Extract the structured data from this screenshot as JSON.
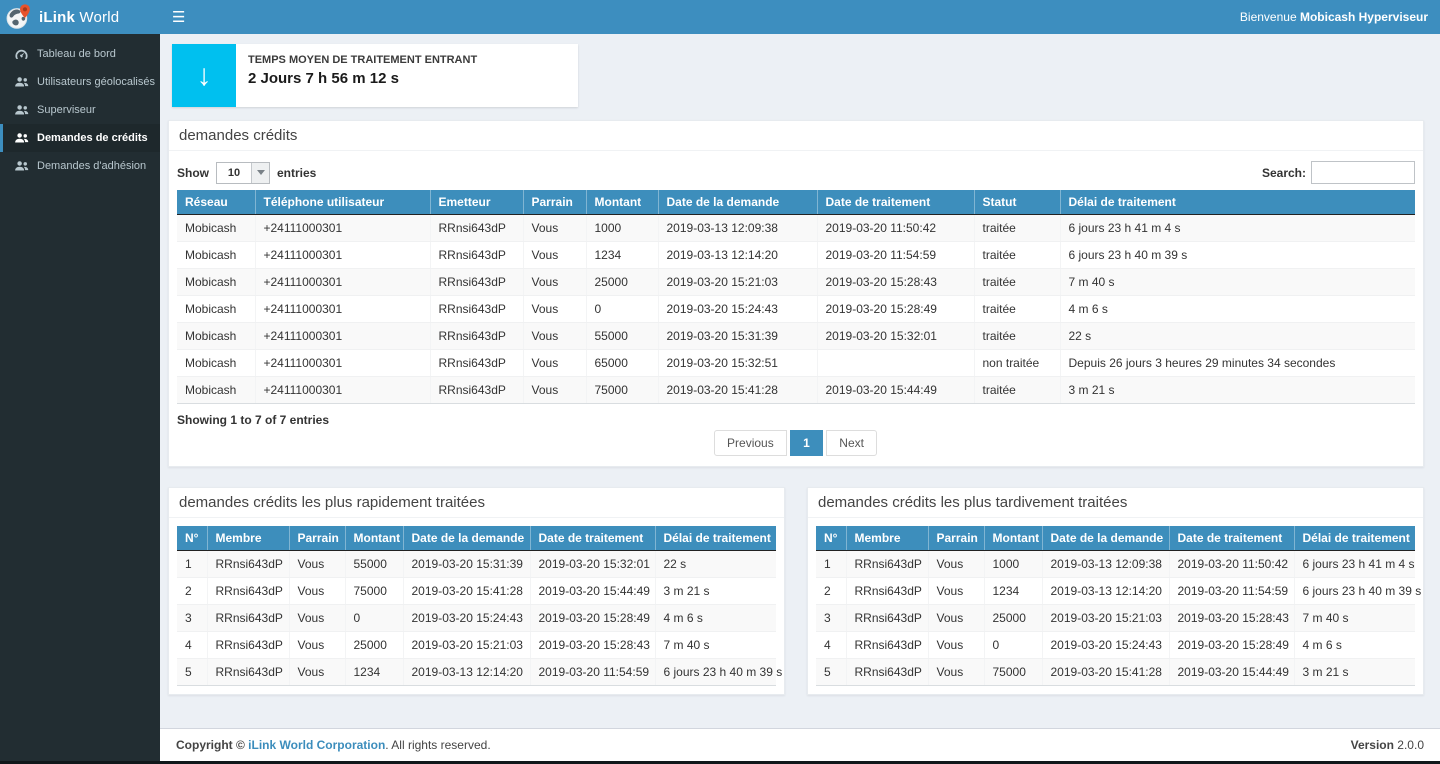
{
  "app": {
    "brand_bold": "iLink",
    "brand_light": " World",
    "welcome_prefix": "Bienvenue ",
    "welcome_user": "Mobicash Hyperviseur"
  },
  "sidebar": {
    "items": [
      {
        "label": "Tableau de bord",
        "icon": "dashboard-icon",
        "active": false
      },
      {
        "label": "Utilisateurs géolocalisés",
        "icon": "users-icon",
        "active": false
      },
      {
        "label": "Superviseur",
        "icon": "users-icon",
        "active": false
      },
      {
        "label": "Demandes de crédits",
        "icon": "users-icon",
        "active": true
      },
      {
        "label": "Demandes d'adhésion",
        "icon": "users-icon",
        "active": false
      }
    ]
  },
  "stat_card": {
    "label": "TEMPS MOYEN DE TRAITEMENT ENTRANT",
    "value": "2 Jours 7 h 56 m 12 s",
    "icon": "arrow-down-icon",
    "icon_bg": "#00c0ef"
  },
  "credits_panel": {
    "title": "demandes crédits",
    "show_label": "Show",
    "page_length": "10",
    "entries_label": "entries",
    "search_label": "Search:",
    "search_value": "",
    "columns": [
      "Réseau",
      "Téléphone utilisateur",
      "Emetteur",
      "Parrain",
      "Montant",
      "Date de la demande",
      "Date de traitement",
      "Statut",
      "Délai de traitement"
    ],
    "rows": [
      [
        "Mobicash",
        "+24111000301",
        "RRnsi643dP",
        "Vous",
        "1000",
        "2019-03-13 12:09:38",
        "2019-03-20 11:50:42",
        "traitée",
        "6 jours 23 h 41 m 4 s"
      ],
      [
        "Mobicash",
        "+24111000301",
        "RRnsi643dP",
        "Vous",
        "1234",
        "2019-03-13 12:14:20",
        "2019-03-20 11:54:59",
        "traitée",
        "6 jours 23 h 40 m 39 s"
      ],
      [
        "Mobicash",
        "+24111000301",
        "RRnsi643dP",
        "Vous",
        "25000",
        "2019-03-20 15:21:03",
        "2019-03-20 15:28:43",
        "traitée",
        "7 m 40 s"
      ],
      [
        "Mobicash",
        "+24111000301",
        "RRnsi643dP",
        "Vous",
        "0",
        "2019-03-20 15:24:43",
        "2019-03-20 15:28:49",
        "traitée",
        "4 m 6 s"
      ],
      [
        "Mobicash",
        "+24111000301",
        "RRnsi643dP",
        "Vous",
        "55000",
        "2019-03-20 15:31:39",
        "2019-03-20 15:32:01",
        "traitée",
        "22 s"
      ],
      [
        "Mobicash",
        "+24111000301",
        "RRnsi643dP",
        "Vous",
        "65000",
        "2019-03-20 15:32:51",
        "",
        "non traitée",
        "Depuis 26 jours 3 heures 29 minutes 34 secondes"
      ],
      [
        "Mobicash",
        "+24111000301",
        "RRnsi643dP",
        "Vous",
        "75000",
        "2019-03-20 15:41:28",
        "2019-03-20 15:44:49",
        "traitée",
        "3 m 21 s"
      ]
    ],
    "info": "Showing 1 to 7 of 7 entries",
    "pagination": {
      "previous": "Previous",
      "page": "1",
      "next": "Next"
    }
  },
  "fastest_panel": {
    "title": "demandes crédits les plus rapidement traitées",
    "columns": [
      "N°",
      "Membre",
      "Parrain",
      "Montant",
      "Date de la demande",
      "Date de traitement",
      "Délai de traitement"
    ],
    "rows": [
      [
        "1",
        "RRnsi643dP",
        "Vous",
        "55000",
        "2019-03-20 15:31:39",
        "2019-03-20 15:32:01",
        "22 s"
      ],
      [
        "2",
        "RRnsi643dP",
        "Vous",
        "75000",
        "2019-03-20 15:41:28",
        "2019-03-20 15:44:49",
        "3 m 21 s"
      ],
      [
        "3",
        "RRnsi643dP",
        "Vous",
        "0",
        "2019-03-20 15:24:43",
        "2019-03-20 15:28:49",
        "4 m 6 s"
      ],
      [
        "4",
        "RRnsi643dP",
        "Vous",
        "25000",
        "2019-03-20 15:21:03",
        "2019-03-20 15:28:43",
        "7 m 40 s"
      ],
      [
        "5",
        "RRnsi643dP",
        "Vous",
        "1234",
        "2019-03-13 12:14:20",
        "2019-03-20 11:54:59",
        "6 jours 23 h 40 m 39 s"
      ]
    ]
  },
  "latest_panel": {
    "title": "demandes crédits les plus tardivement traitées",
    "columns": [
      "N°",
      "Membre",
      "Parrain",
      "Montant",
      "Date de la demande",
      "Date de traitement",
      "Délai de traitement"
    ],
    "rows": [
      [
        "1",
        "RRnsi643dP",
        "Vous",
        "1000",
        "2019-03-13 12:09:38",
        "2019-03-20 11:50:42",
        "6 jours 23 h 41 m 4 s"
      ],
      [
        "2",
        "RRnsi643dP",
        "Vous",
        "1234",
        "2019-03-13 12:14:20",
        "2019-03-20 11:54:59",
        "6 jours 23 h 40 m 39 s"
      ],
      [
        "3",
        "RRnsi643dP",
        "Vous",
        "25000",
        "2019-03-20 15:21:03",
        "2019-03-20 15:28:43",
        "7 m 40 s"
      ],
      [
        "4",
        "RRnsi643dP",
        "Vous",
        "0",
        "2019-03-20 15:24:43",
        "2019-03-20 15:28:49",
        "4 m 6 s"
      ],
      [
        "5",
        "RRnsi643dP",
        "Vous",
        "75000",
        "2019-03-20 15:41:28",
        "2019-03-20 15:44:49",
        "3 m 21 s"
      ]
    ]
  },
  "footer": {
    "copyright_prefix": "Copyright © ",
    "company": "iLink World Corporation",
    "copyright_suffix": ". All rights reserved.",
    "version_label": "Version",
    "version_value": " 2.0.0"
  },
  "colors": {
    "navbar": "#3d8ebf",
    "sidebar": "#222d32",
    "sidebar_active_bg": "#1e282c",
    "table_header": "#3d8ebc",
    "info_icon": "#00c0ef",
    "active_page": "#3d8ebc",
    "link": "#3c8dbc",
    "content_bg": "#ecf0f5"
  }
}
